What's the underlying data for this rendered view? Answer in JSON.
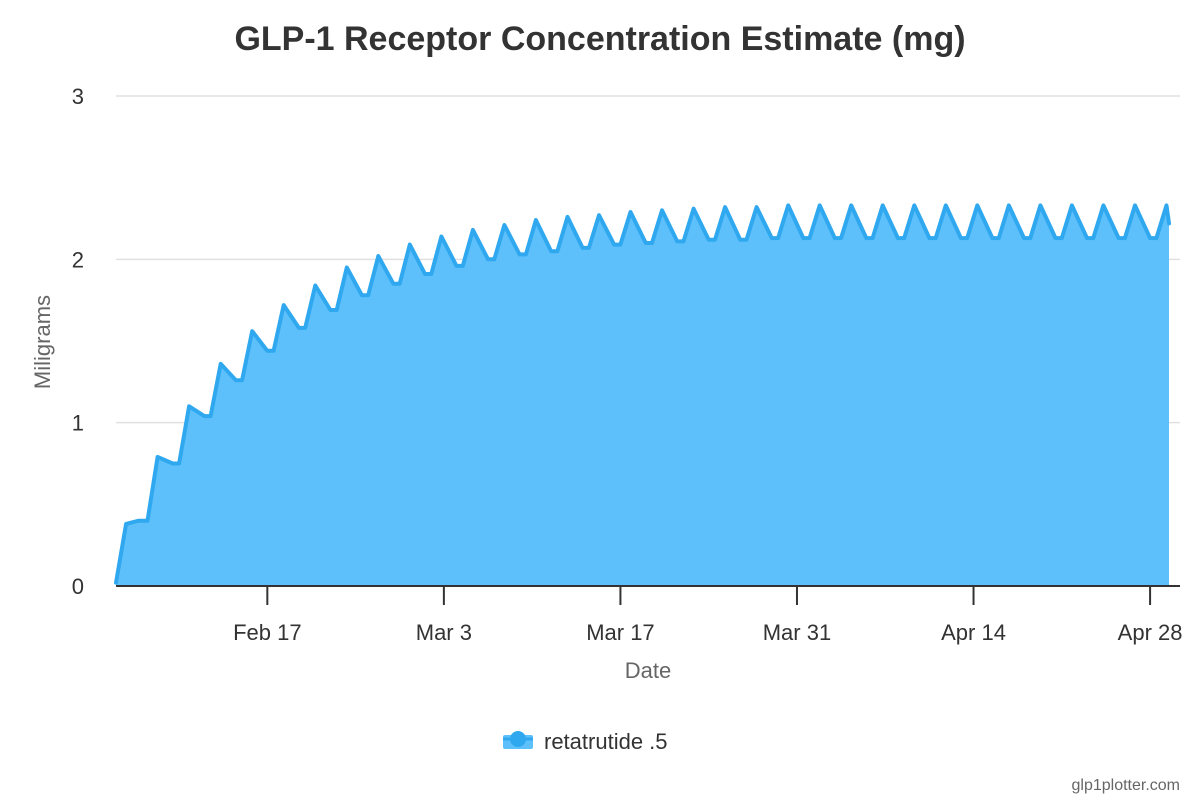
{
  "chart_data": {
    "type": "area",
    "title": "GLP-1 Receptor Concentration Estimate (mg)",
    "xlabel": "Date",
    "ylabel": "Miligrams",
    "ylim": [
      0,
      3
    ],
    "yticks": [
      "0",
      "1",
      "2",
      "3"
    ],
    "xticks": [
      {
        "label": "Feb 17",
        "day": 13
      },
      {
        "label": "Mar 3",
        "day": 27
      },
      {
        "label": "Mar 17",
        "day": 41
      },
      {
        "label": "Mar 31",
        "day": 55
      },
      {
        "label": "Apr 14",
        "day": 69
      },
      {
        "label": "Apr 28",
        "day": 83
      }
    ],
    "x_range_days": [
      1,
      84.5
    ],
    "grid": true,
    "legend_position": "bottom-center",
    "series": [
      {
        "name": "retatrutide .5",
        "color": "#2fa8ef",
        "fill": "#5ec0fb",
        "points": [
          [
            1.0,
            0.02
          ],
          [
            1.8,
            0.38
          ],
          [
            2.8,
            0.4
          ],
          [
            3.5,
            0.4
          ],
          [
            4.3,
            0.79
          ],
          [
            5.5,
            0.75
          ],
          [
            6.0,
            0.75
          ],
          [
            6.8,
            1.1
          ],
          [
            8.0,
            1.04
          ],
          [
            8.5,
            1.04
          ],
          [
            9.3,
            1.36
          ],
          [
            10.5,
            1.26
          ],
          [
            11.0,
            1.26
          ],
          [
            11.8,
            1.56
          ],
          [
            13.0,
            1.44
          ],
          [
            13.5,
            1.44
          ],
          [
            14.3,
            1.72
          ],
          [
            15.5,
            1.58
          ],
          [
            16.0,
            1.58
          ],
          [
            16.8,
            1.84
          ],
          [
            18.0,
            1.69
          ],
          [
            18.5,
            1.69
          ],
          [
            19.3,
            1.95
          ],
          [
            20.5,
            1.78
          ],
          [
            21.0,
            1.78
          ],
          [
            21.8,
            2.02
          ],
          [
            23.0,
            1.85
          ],
          [
            23.5,
            1.85
          ],
          [
            24.3,
            2.09
          ],
          [
            25.5,
            1.91
          ],
          [
            26.0,
            1.91
          ],
          [
            26.8,
            2.14
          ],
          [
            28.0,
            1.96
          ],
          [
            28.5,
            1.96
          ],
          [
            29.3,
            2.18
          ],
          [
            30.5,
            2.0
          ],
          [
            31.0,
            2.0
          ],
          [
            31.8,
            2.21
          ],
          [
            33.0,
            2.03
          ],
          [
            33.5,
            2.03
          ],
          [
            34.3,
            2.24
          ],
          [
            35.5,
            2.05
          ],
          [
            36.0,
            2.05
          ],
          [
            36.8,
            2.26
          ],
          [
            38.0,
            2.07
          ],
          [
            38.5,
            2.07
          ],
          [
            39.3,
            2.27
          ],
          [
            40.5,
            2.09
          ],
          [
            41.0,
            2.09
          ],
          [
            41.8,
            2.29
          ],
          [
            43.0,
            2.1
          ],
          [
            43.5,
            2.1
          ],
          [
            44.3,
            2.3
          ],
          [
            45.5,
            2.11
          ],
          [
            46.0,
            2.11
          ],
          [
            46.8,
            2.31
          ],
          [
            48.0,
            2.12
          ],
          [
            48.5,
            2.12
          ],
          [
            49.3,
            2.32
          ],
          [
            50.5,
            2.12
          ],
          [
            51.0,
            2.12
          ],
          [
            51.8,
            2.32
          ],
          [
            53.0,
            2.13
          ],
          [
            53.5,
            2.13
          ],
          [
            54.3,
            2.33
          ],
          [
            55.5,
            2.13
          ],
          [
            56.0,
            2.13
          ],
          [
            56.8,
            2.33
          ],
          [
            58.0,
            2.13
          ],
          [
            58.5,
            2.13
          ],
          [
            59.3,
            2.33
          ],
          [
            60.5,
            2.13
          ],
          [
            61.0,
            2.13
          ],
          [
            61.8,
            2.33
          ],
          [
            63.0,
            2.13
          ],
          [
            63.5,
            2.13
          ],
          [
            64.3,
            2.33
          ],
          [
            65.5,
            2.13
          ],
          [
            66.0,
            2.13
          ],
          [
            66.8,
            2.33
          ],
          [
            68.0,
            2.13
          ],
          [
            68.5,
            2.13
          ],
          [
            69.3,
            2.33
          ],
          [
            70.5,
            2.13
          ],
          [
            71.0,
            2.13
          ],
          [
            71.8,
            2.33
          ],
          [
            73.0,
            2.13
          ],
          [
            73.5,
            2.13
          ],
          [
            74.3,
            2.33
          ],
          [
            75.5,
            2.13
          ],
          [
            76.0,
            2.13
          ],
          [
            76.8,
            2.33
          ],
          [
            78.0,
            2.13
          ],
          [
            78.5,
            2.13
          ],
          [
            79.3,
            2.33
          ],
          [
            80.5,
            2.13
          ],
          [
            81.0,
            2.13
          ],
          [
            81.8,
            2.33
          ],
          [
            83.0,
            2.13
          ],
          [
            83.5,
            2.13
          ],
          [
            84.3,
            2.33
          ],
          [
            84.5,
            2.22
          ]
        ]
      }
    ]
  },
  "credit": "glp1plotter.com"
}
